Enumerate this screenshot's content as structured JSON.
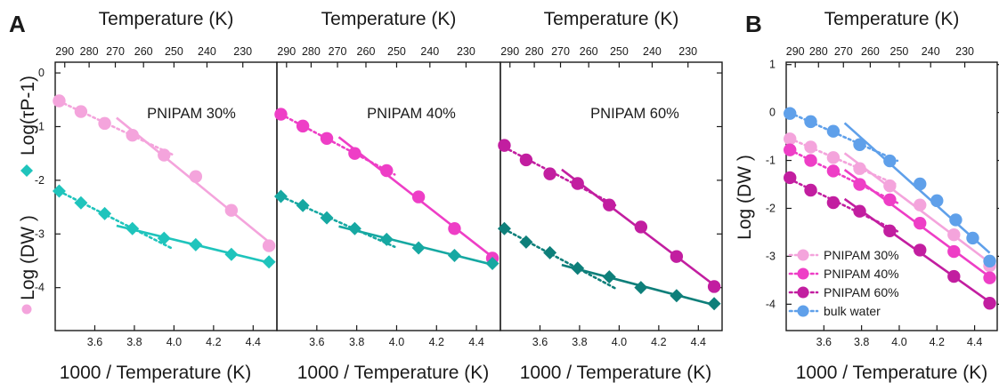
{
  "panel_letters": [
    "A",
    "B"
  ],
  "colors": {
    "pnipam30": "#f4a4dc",
    "pnipam40": "#ee3ec6",
    "pnipam60": "#c21ea0",
    "bulk_water": "#5fa0ea",
    "dw_30": "#1fc4bc",
    "dw_40": "#16a8a2",
    "dw_60": "#0e7f7a",
    "axis": "#1a1a1a"
  },
  "chart_data": [
    {
      "panel": "A",
      "type": "scatter",
      "top_axis_title": "Temperature (K)",
      "top_ticks": [
        "290",
        "280",
        "270",
        "260",
        "250",
        "240",
        "230"
      ],
      "xlabel": "1000 / Temperature (K)",
      "ylabel_top": "Log(τP-1)",
      "ylabel_bottom": "Log (DW )",
      "xlim": [
        3.4,
        4.52
      ],
      "ylim": [
        -4.8,
        0.2
      ],
      "x_ticks": [
        "3.6",
        "3.8",
        "4.0",
        "4.2",
        "4.4"
      ],
      "y_ticks": [
        "0",
        "-1",
        "-2",
        "-3",
        "-4"
      ],
      "annotation": "PNIPAM 30%",
      "series": [
        {
          "color_key": "pnipam30",
          "marker": "circle",
          "x": [
            3.42,
            3.53,
            3.65,
            3.79,
            3.95,
            4.11,
            4.29,
            4.48
          ],
          "y": [
            -0.52,
            -0.72,
            -0.94,
            -1.16,
            -1.53,
            -1.93,
            -2.56,
            -3.22
          ]
        },
        {
          "color_key": "dw_30",
          "marker": "diamond",
          "x": [
            3.42,
            3.53,
            3.65,
            3.79,
            3.95,
            4.11,
            4.29,
            4.48
          ],
          "y": [
            -2.2,
            -2.42,
            -2.62,
            -2.9,
            -3.08,
            -3.2,
            -3.38,
            -3.52
          ]
        }
      ]
    },
    {
      "panel": "A",
      "type": "scatter",
      "top_axis_title": "Temperature (K)",
      "top_ticks": [
        "290",
        "280",
        "270",
        "260",
        "250",
        "240",
        "230"
      ],
      "xlabel": "1000 / Temperature (K)",
      "xlim": [
        3.4,
        4.52
      ],
      "ylim": [
        -4.8,
        0.2
      ],
      "x_ticks": [
        "3.6",
        "3.8",
        "4.0",
        "4.2",
        "4.4"
      ],
      "annotation": "PNIPAM 40%",
      "series": [
        {
          "color_key": "pnipam40",
          "marker": "circle",
          "x": [
            3.42,
            3.53,
            3.65,
            3.79,
            3.95,
            4.11,
            4.29,
            4.48
          ],
          "y": [
            -0.77,
            -0.99,
            -1.22,
            -1.5,
            -1.82,
            -2.31,
            -2.9,
            -3.45
          ]
        },
        {
          "color_key": "dw_40",
          "marker": "diamond",
          "x": [
            3.42,
            3.53,
            3.65,
            3.79,
            3.95,
            4.11,
            4.29,
            4.48
          ],
          "y": [
            -2.3,
            -2.47,
            -2.7,
            -2.9,
            -3.1,
            -3.26,
            -3.4,
            -3.55
          ]
        }
      ]
    },
    {
      "panel": "A",
      "type": "scatter",
      "top_axis_title": "Temperature (K)",
      "top_ticks": [
        "290",
        "280",
        "270",
        "260",
        "250",
        "240",
        "230"
      ],
      "xlabel": "1000 / Temperature (K)",
      "xlim": [
        3.4,
        4.52
      ],
      "ylim": [
        -4.8,
        0.2
      ],
      "x_ticks": [
        "3.6",
        "3.8",
        "4.0",
        "4.2",
        "4.4"
      ],
      "annotation": "PNIPAM 60%",
      "series": [
        {
          "color_key": "pnipam60",
          "marker": "circle",
          "x": [
            3.42,
            3.53,
            3.65,
            3.79,
            3.95,
            4.11,
            4.29,
            4.48
          ],
          "y": [
            -1.35,
            -1.62,
            -1.88,
            -2.06,
            -2.46,
            -2.87,
            -3.42,
            -3.98
          ]
        },
        {
          "color_key": "dw_60",
          "marker": "diamond",
          "x": [
            3.42,
            3.53,
            3.65,
            3.79,
            3.95,
            4.11,
            4.29,
            4.48
          ],
          "y": [
            -2.9,
            -3.15,
            -3.35,
            -3.64,
            -3.8,
            -4.0,
            -4.15,
            -4.3
          ]
        }
      ]
    },
    {
      "panel": "B",
      "type": "scatter",
      "top_axis_title": "Temperature (K)",
      "top_ticks": [
        "290",
        "280",
        "270",
        "260",
        "250",
        "240",
        "230"
      ],
      "xlabel": "1000 / Temperature (K)",
      "ylabel": "Log (DW )",
      "xlim": [
        3.4,
        4.52
      ],
      "ylim": [
        -4.55,
        1.05
      ],
      "x_ticks": [
        "3.6",
        "3.8",
        "4.0",
        "4.2",
        "4.4"
      ],
      "y_ticks": [
        "1",
        "0",
        "-1",
        "-2",
        "-3",
        "-4"
      ],
      "legend_position": "bottom-left",
      "series": [
        {
          "name": "PNIPAM 30%",
          "color_key": "pnipam30",
          "marker": "circle",
          "x": [
            3.42,
            3.53,
            3.65,
            3.79,
            3.95,
            4.11,
            4.29,
            4.48
          ],
          "y": [
            -0.55,
            -0.72,
            -0.94,
            -1.17,
            -1.53,
            -1.93,
            -2.55,
            -3.2
          ]
        },
        {
          "name": "PNIPAM 40%",
          "color_key": "pnipam40",
          "marker": "circle",
          "x": [
            3.42,
            3.53,
            3.65,
            3.79,
            3.95,
            4.11,
            4.29,
            4.48
          ],
          "y": [
            -0.78,
            -1.0,
            -1.22,
            -1.5,
            -1.82,
            -2.31,
            -2.9,
            -3.45
          ]
        },
        {
          "name": "PNIPAM 60%",
          "color_key": "pnipam60",
          "marker": "circle",
          "x": [
            3.42,
            3.53,
            3.65,
            3.79,
            3.95,
            4.11,
            4.29,
            4.48
          ],
          "y": [
            -1.36,
            -1.62,
            -1.88,
            -2.06,
            -2.47,
            -2.87,
            -3.42,
            -3.98
          ]
        },
        {
          "name": "bulk water",
          "color_key": "bulk_water",
          "marker": "circle",
          "x": [
            3.42,
            3.53,
            3.65,
            3.79,
            3.95,
            4.11,
            4.2,
            4.3,
            4.39,
            4.48
          ],
          "y": [
            -0.02,
            -0.19,
            -0.39,
            -0.67,
            -1.01,
            -1.49,
            -1.84,
            -2.24,
            -2.62,
            -3.1
          ]
        }
      ]
    }
  ]
}
